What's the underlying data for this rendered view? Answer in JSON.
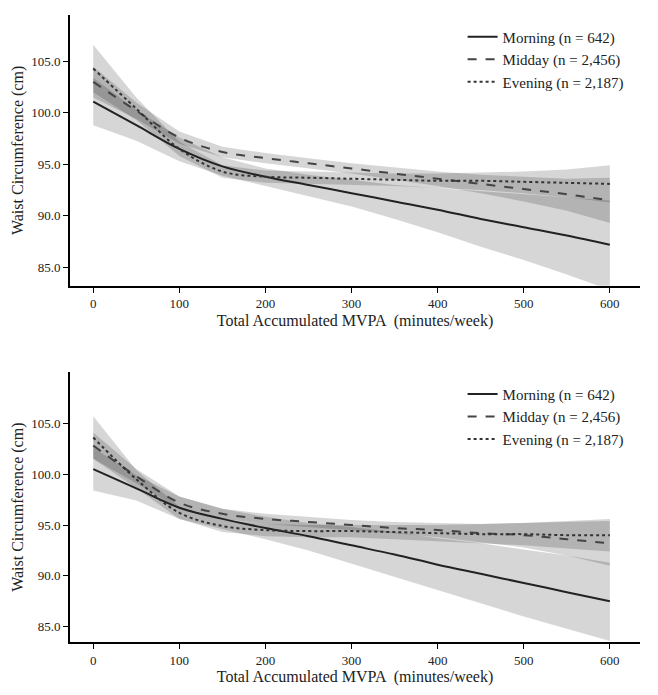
{
  "chart_data": [
    {
      "type": "line",
      "x_label": "Total Accumulated MVPA  (minutes/week)",
      "y_label": "Waist Circumference (cm)",
      "x": [
        0,
        50,
        100,
        150,
        200,
        250,
        300,
        350,
        400,
        450,
        500,
        550,
        600
      ],
      "xlim": [
        -27,
        635
      ],
      "xticks": [
        0,
        100,
        200,
        300,
        400,
        500,
        600
      ],
      "ylim": [
        83.2,
        109.5
      ],
      "yticks": [
        {
          "value": 85,
          "label": "85.0"
        },
        {
          "value": 90,
          "label": "90.0"
        },
        {
          "value": 95,
          "label": "95.0"
        },
        {
          "value": 100,
          "label": "100.0"
        },
        {
          "value": 105,
          "label": "105.0"
        }
      ],
      "grid": false,
      "legend": "top right",
      "series": [
        {
          "name": "Morning (n = 642)",
          "color": "#222222",
          "line_style": "solid",
          "values": [
            101.1,
            98.8,
            96.5,
            94.8,
            93.8,
            93.0,
            92.2,
            91.4,
            90.6,
            89.7,
            88.9,
            88.1,
            87.2
          ],
          "lower": [
            98.8,
            97.3,
            95.3,
            93.9,
            92.9,
            91.9,
            90.9,
            89.7,
            88.4,
            87.0,
            85.7,
            84.3,
            82.8
          ],
          "upper": [
            103.4,
            100.3,
            97.6,
            95.7,
            94.6,
            94.0,
            93.5,
            93.0,
            92.7,
            92.4,
            92.1,
            91.8,
            91.5
          ]
        },
        {
          "name": "Midday (n = 2,456)",
          "color": "#444444",
          "line_style": "dash",
          "values": [
            103.0,
            100.2,
            97.6,
            96.2,
            95.6,
            95.1,
            94.6,
            94.1,
            93.6,
            93.1,
            92.6,
            92.1,
            91.5
          ],
          "lower": [
            101.5,
            99.4,
            97.0,
            95.7,
            95.1,
            94.6,
            94.1,
            93.5,
            92.9,
            92.2,
            91.4,
            90.5,
            89.3
          ],
          "upper": [
            104.5,
            101.0,
            98.2,
            96.7,
            96.1,
            95.6,
            95.1,
            94.7,
            94.3,
            94.0,
            93.8,
            93.6,
            93.7
          ]
        },
        {
          "name": "Evening (n = 2,187)",
          "color": "#333333",
          "line_style": "dot",
          "values": [
            104.3,
            100.4,
            96.5,
            94.3,
            93.8,
            93.7,
            93.6,
            93.5,
            93.4,
            93.4,
            93.3,
            93.2,
            93.1
          ],
          "lower": [
            102.0,
            99.3,
            95.8,
            93.7,
            93.2,
            93.1,
            93.0,
            92.9,
            92.7,
            92.5,
            92.2,
            91.8,
            91.3
          ],
          "upper": [
            106.6,
            101.5,
            97.2,
            94.9,
            94.4,
            94.3,
            94.2,
            94.1,
            94.1,
            94.2,
            94.3,
            94.5,
            94.9
          ]
        }
      ]
    },
    {
      "type": "line",
      "x_label": "Total Accumulated MVPA  (minutes/week)",
      "y_label": "Waist Circumference (cm)",
      "x": [
        0,
        50,
        100,
        150,
        200,
        250,
        300,
        350,
        400,
        450,
        500,
        550,
        600
      ],
      "xlim": [
        -27,
        635
      ],
      "xticks": [
        0,
        100,
        200,
        300,
        400,
        500,
        600
      ],
      "ylim": [
        83.5,
        110
      ],
      "yticks": [
        {
          "value": 85,
          "label": "85.0"
        },
        {
          "value": 90,
          "label": "90.0"
        },
        {
          "value": 95,
          "label": "95.0"
        },
        {
          "value": 100,
          "label": "100.0"
        },
        {
          "value": 105,
          "label": "105.0"
        }
      ],
      "grid": false,
      "legend": "top right",
      "series": [
        {
          "name": "Morning (n = 642)",
          "color": "#222222",
          "line_style": "solid",
          "values": [
            100.5,
            98.6,
            96.7,
            95.6,
            94.7,
            93.9,
            93.0,
            92.1,
            91.1,
            90.2,
            89.3,
            88.4,
            87.5
          ],
          "lower": [
            98.4,
            97.4,
            95.6,
            94.6,
            93.6,
            92.5,
            91.2,
            89.9,
            88.6,
            87.3,
            86.0,
            84.8,
            83.6
          ],
          "upper": [
            102.6,
            99.9,
            97.8,
            96.6,
            95.8,
            95.2,
            94.8,
            94.3,
            93.7,
            93.2,
            92.6,
            92.0,
            91.3
          ]
        },
        {
          "name": "Midday (n = 2,456)",
          "color": "#444444",
          "line_style": "dash",
          "values": [
            102.8,
            99.8,
            97.2,
            96.1,
            95.6,
            95.3,
            95.0,
            94.7,
            94.5,
            94.2,
            94.0,
            93.6,
            93.2
          ],
          "lower": [
            101.5,
            99.1,
            96.6,
            95.6,
            95.1,
            94.8,
            94.5,
            94.2,
            93.8,
            93.3,
            92.8,
            92.0,
            91.0
          ],
          "upper": [
            104.1,
            100.5,
            97.8,
            96.6,
            96.1,
            95.8,
            95.5,
            95.3,
            95.2,
            95.1,
            95.2,
            95.3,
            95.4
          ]
        },
        {
          "name": "Evening (n = 2,187)",
          "color": "#333333",
          "line_style": "dot",
          "values": [
            103.6,
            99.5,
            96.2,
            94.9,
            94.5,
            94.4,
            94.4,
            94.3,
            94.2,
            94.1,
            94.1,
            94.0,
            94.0
          ],
          "lower": [
            101.5,
            98.6,
            95.6,
            94.3,
            93.9,
            93.8,
            93.8,
            93.6,
            93.4,
            93.2,
            93.0,
            92.7,
            92.4
          ],
          "upper": [
            105.7,
            100.4,
            96.8,
            95.5,
            95.1,
            95.0,
            95.0,
            95.0,
            95.0,
            95.1,
            95.2,
            95.4,
            95.6
          ]
        }
      ]
    }
  ]
}
